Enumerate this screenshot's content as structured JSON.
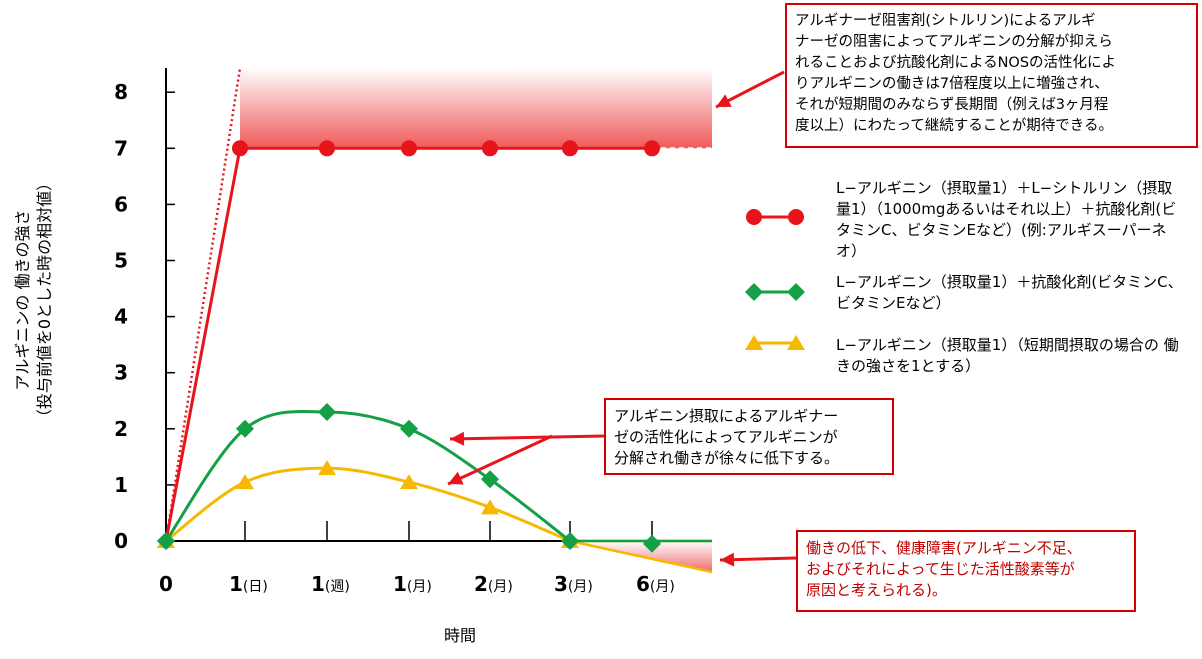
{
  "chart_data": {
    "type": "line",
    "xlabel": "時間",
    "ylabel": "アルギニンの 働きの強さ\n（投与前値を0とした時の相対値）",
    "ylim": [
      0,
      8
    ],
    "yticks": [
      "0",
      "1",
      "2",
      "3",
      "4",
      "5",
      "6",
      "7",
      "8"
    ],
    "categories": [
      {
        "num": "0",
        "unit": ""
      },
      {
        "num": "1",
        "unit": "(日)"
      },
      {
        "num": "1",
        "unit": "(週)"
      },
      {
        "num": "1",
        "unit": "(月)"
      },
      {
        "num": "2",
        "unit": "(月)"
      },
      {
        "num": "3",
        "unit": "(月)"
      },
      {
        "num": "6",
        "unit": "(月)"
      }
    ],
    "series": [
      {
        "name": "L−アルギニン（摂取量1）＋L−シトルリン（摂取量1）（1000mgあるいはそれ以上）＋抗酸化剤(ビタミンC、ビタミンEなど）(例:アルギスーパーネオ）",
        "values": [
          0,
          7,
          7,
          7,
          7,
          7,
          7
        ],
        "color": "#e8141c",
        "marker": "circle"
      },
      {
        "name": "L−アルギニン（摂取量1）＋抗酸化剤(ビタミンC、ビタミンEなど）",
        "values": [
          0,
          2.0,
          2.3,
          2.0,
          1.1,
          0,
          -0.05
        ],
        "color": "#13a047",
        "marker": "diamond"
      },
      {
        "name": "L−アルギニン（摂取量1）（短期間摂取の場合の 働きの強さを1とする）",
        "values": [
          0,
          1.05,
          1.3,
          1.05,
          0.6,
          0,
          0
        ],
        "color": "#f7b800",
        "marker": "triangle"
      }
    ],
    "annotations": {
      "top": "アルギナーゼ阻害剤(シトルリン)によるアルギ\nナーゼの阻害によってアルギニンの分解が抑えら\nれることおよび抗酸化剤によるNOSの活性化によ\nりアルギニンの働きは7倍程度以上に増強され、\nそれが短期間のみならず長期間（例えば3ヶ月程\n度以上）にわたって継続することが期待できる。",
      "middle": "アルギニン摂取によるアルギナー\nゼの活性化によってアルギニンが\n分解され働きが徐々に低下する。",
      "bottom": "働きの低下、健康障害(アルギニン不足、\nおよびそれによって生じた活性酸素等が\n原因と考えられる)。"
    },
    "colors": {
      "annotation_border": "#d40000",
      "axis": "#000000",
      "shade": "#f06060"
    }
  }
}
